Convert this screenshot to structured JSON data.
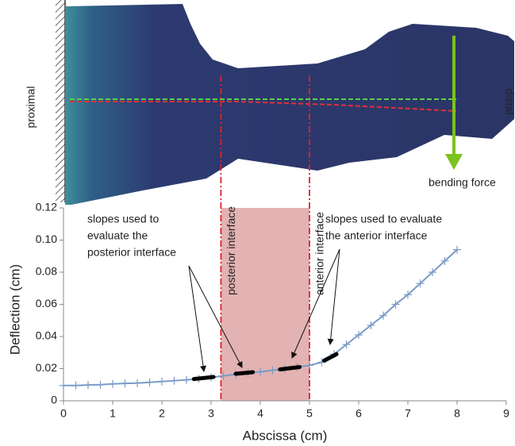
{
  "chart_data": {
    "type": "line",
    "x_label": "Abscissa (cm)",
    "y_label": "Deflection (cm)",
    "xlim": [
      0,
      9
    ],
    "ylim": [
      0,
      0.12
    ],
    "xticks": [
      0,
      1,
      2,
      3,
      4,
      5,
      6,
      7,
      8,
      9
    ],
    "yticks": [
      0,
      0.02,
      0.04,
      0.06,
      0.08,
      {
        "value": 0.1,
        "label": "0.10"
      },
      0.12
    ],
    "x": [
      0,
      0.25,
      0.5,
      0.75,
      1,
      1.25,
      1.5,
      1.75,
      2,
      2.25,
      2.5,
      2.75,
      3,
      3.25,
      3.5,
      3.75,
      4,
      4.25,
      4.5,
      4.75,
      5,
      5.25,
      5.5,
      5.75,
      6,
      6.25,
      6.5,
      6.75,
      7,
      7.25,
      7.5,
      7.75,
      8
    ],
    "series": [
      {
        "color": "#7a9cc6",
        "values": [
          0.0095,
          0.0095,
          0.0098,
          0.01,
          0.0105,
          0.0108,
          0.011,
          0.0115,
          0.012,
          0.0125,
          0.013,
          0.0137,
          0.0145,
          0.0155,
          0.0165,
          0.0175,
          0.018,
          0.019,
          0.02,
          0.021,
          0.022,
          0.024,
          0.029,
          0.035,
          0.041,
          0.047,
          0.053,
          0.06,
          0.066,
          0.073,
          0.08,
          0.087,
          0.094
        ]
      }
    ],
    "slope_segments": [
      {
        "x": [
          2.65,
          3.05
        ],
        "values": [
          0.0135,
          0.0148
        ]
      },
      {
        "x": [
          3.5,
          3.85
        ],
        "values": [
          0.0168,
          0.0178
        ]
      },
      {
        "x": [
          4.4,
          4.8
        ],
        "values": [
          0.0195,
          0.021
        ]
      },
      {
        "x": [
          5.3,
          5.55
        ],
        "values": [
          0.025,
          0.029
        ]
      }
    ],
    "interfaces": [
      {
        "label": "posterior interface",
        "x": 3.2
      },
      {
        "label": "anterior interface",
        "x": 5.0
      }
    ],
    "annotations": [
      {
        "lines": [
          "slopes used to",
          "evaluate the",
          "posterior interface"
        ]
      },
      {
        "lines": [
          "slopes used to evaluate",
          "the anterior interface"
        ]
      }
    ],
    "photo_labels": {
      "proximal": "proximal",
      "distal": "distal",
      "force": "bending force"
    }
  }
}
